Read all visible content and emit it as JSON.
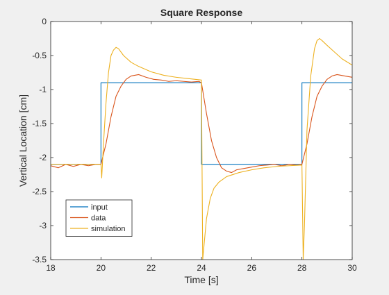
{
  "chart_data": {
    "type": "line",
    "title": "Square Response",
    "xlabel": "Time [s]",
    "ylabel": "Vertical Location [cm]",
    "xlim": [
      18,
      30
    ],
    "ylim": [
      -3.5,
      0
    ],
    "xticks": [
      18,
      20,
      22,
      24,
      26,
      28,
      30
    ],
    "yticks": [
      0,
      -0.5,
      -1,
      -1.5,
      -2,
      -2.5,
      -3,
      -3.5
    ],
    "xtick_labels": [
      "18",
      "20",
      "22",
      "24",
      "26",
      "28",
      "30"
    ],
    "ytick_labels": [
      "0",
      "-0.5",
      "-1",
      "-1.5",
      "-2",
      "-2.5",
      "-3",
      "-3.5"
    ],
    "grid": false,
    "legend_position": "bottom-left",
    "series": [
      {
        "name": "input",
        "color": "#0072BD",
        "x": [
          18,
          20,
          20,
          24,
          24,
          28,
          28,
          30
        ],
        "y": [
          -2.1,
          -2.1,
          -0.9,
          -0.9,
          -2.1,
          -2.1,
          -0.9,
          -0.9
        ]
      },
      {
        "name": "data",
        "color": "#D95319",
        "x": [
          18,
          18.3,
          18.6,
          18.9,
          19.2,
          19.5,
          19.8,
          20.0,
          20.2,
          20.4,
          20.6,
          20.8,
          21.0,
          21.2,
          21.5,
          21.8,
          22.1,
          22.4,
          22.7,
          23.0,
          23.3,
          23.6,
          23.9,
          24.0,
          24.2,
          24.4,
          24.6,
          24.8,
          25.0,
          25.2,
          25.4,
          25.7,
          26.0,
          26.3,
          26.6,
          26.9,
          27.2,
          27.5,
          27.8,
          28.0,
          28.2,
          28.4,
          28.6,
          28.8,
          29.0,
          29.2,
          29.4,
          29.7,
          30.0
        ],
        "y": [
          -2.12,
          -2.15,
          -2.1,
          -2.13,
          -2.1,
          -2.12,
          -2.1,
          -2.1,
          -1.8,
          -1.4,
          -1.1,
          -0.95,
          -0.85,
          -0.8,
          -0.78,
          -0.82,
          -0.85,
          -0.86,
          -0.88,
          -0.87,
          -0.88,
          -0.89,
          -0.88,
          -0.9,
          -1.35,
          -1.75,
          -2.0,
          -2.15,
          -2.2,
          -2.22,
          -2.18,
          -2.16,
          -2.14,
          -2.12,
          -2.11,
          -2.1,
          -2.12,
          -2.1,
          -2.11,
          -2.1,
          -1.8,
          -1.4,
          -1.1,
          -0.95,
          -0.85,
          -0.8,
          -0.78,
          -0.8,
          -0.82
        ]
      },
      {
        "name": "simulation",
        "color": "#EDB120",
        "x": [
          18,
          20,
          20.03,
          20.1,
          20.2,
          20.3,
          20.4,
          20.5,
          20.6,
          20.7,
          20.9,
          21.2,
          21.5,
          22.0,
          22.5,
          23.0,
          23.5,
          24.0,
          24.05,
          24.1,
          24.2,
          24.35,
          24.5,
          24.7,
          25.0,
          25.5,
          26.0,
          26.5,
          27.0,
          27.5,
          28.0,
          28.05,
          28.1,
          28.2,
          28.35,
          28.5,
          28.6,
          28.7,
          28.8,
          29.0,
          29.3,
          29.6,
          30.0
        ],
        "y": [
          -2.1,
          -2.1,
          -2.3,
          -1.8,
          -1.2,
          -0.75,
          -0.5,
          -0.42,
          -0.38,
          -0.4,
          -0.5,
          -0.6,
          -0.66,
          -0.74,
          -0.79,
          -0.82,
          -0.84,
          -0.86,
          -3.5,
          -3.3,
          -2.9,
          -2.6,
          -2.45,
          -2.36,
          -2.28,
          -2.22,
          -2.18,
          -2.15,
          -2.13,
          -2.12,
          -2.11,
          -3.5,
          -3.0,
          -1.6,
          -0.8,
          -0.4,
          -0.28,
          -0.25,
          -0.28,
          -0.35,
          -0.45,
          -0.55,
          -0.64
        ]
      }
    ]
  }
}
